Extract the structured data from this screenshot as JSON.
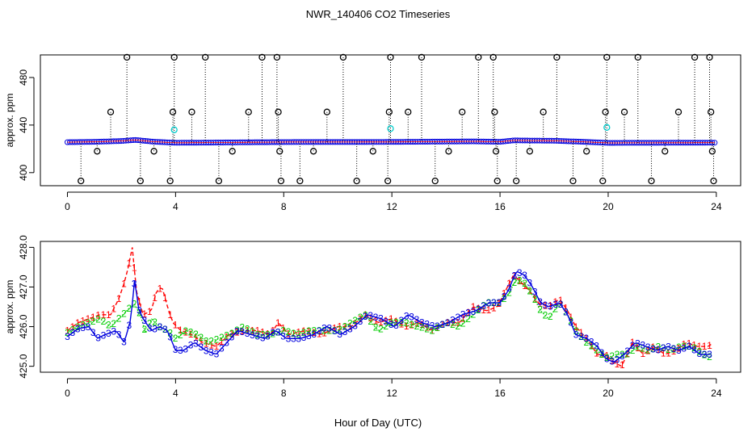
{
  "figure": {
    "title": "NWR_140406  CO2 Timeseries",
    "xlabel": "Hour of Day (UTC)"
  },
  "chart_data": [
    {
      "type": "scatter",
      "ylabel": "approx. ppm",
      "xlim": [
        -1,
        24.9
      ],
      "ylim": [
        389,
        499
      ],
      "x_ticks": [
        0,
        4,
        8,
        12,
        16,
        20,
        24
      ],
      "y_ticks": [
        400,
        440,
        480
      ],
      "baseline": [
        [
          0,
          425.6
        ],
        [
          1,
          425.9
        ],
        [
          2,
          426.6
        ],
        [
          2.5,
          427.5
        ],
        [
          3.2,
          426.0
        ],
        [
          4,
          425.1
        ],
        [
          5,
          425.2
        ],
        [
          6,
          425.4
        ],
        [
          8,
          425.7
        ],
        [
          12,
          425.8
        ],
        [
          15,
          426.3
        ],
        [
          16,
          425.9
        ],
        [
          16.5,
          427.1
        ],
        [
          18,
          426.8
        ],
        [
          19,
          426.0
        ],
        [
          20,
          425.0
        ],
        [
          24,
          425.2
        ]
      ],
      "outliers": [
        {
          "x": 0.5,
          "y": 393
        },
        {
          "x": 1.1,
          "y": 418
        },
        {
          "x": 1.6,
          "y": 451
        },
        {
          "x": 2.2,
          "y": 497
        },
        {
          "x": 2.7,
          "y": 393
        },
        {
          "x": 3.2,
          "y": 418
        },
        {
          "x": 3.8,
          "y": 393
        },
        {
          "x": 3.9,
          "y": 451
        },
        {
          "x": 3.95,
          "y": 497
        },
        {
          "x": 4.6,
          "y": 451
        },
        {
          "x": 5.1,
          "y": 497
        },
        {
          "x": 5.6,
          "y": 393
        },
        {
          "x": 6.1,
          "y": 418
        },
        {
          "x": 6.7,
          "y": 451
        },
        {
          "x": 7.2,
          "y": 497
        },
        {
          "x": 7.75,
          "y": 497
        },
        {
          "x": 7.8,
          "y": 451
        },
        {
          "x": 7.85,
          "y": 418
        },
        {
          "x": 7.9,
          "y": 393
        },
        {
          "x": 8.6,
          "y": 393
        },
        {
          "x": 9.1,
          "y": 418
        },
        {
          "x": 9.6,
          "y": 451
        },
        {
          "x": 10.2,
          "y": 497
        },
        {
          "x": 10.7,
          "y": 393
        },
        {
          "x": 11.3,
          "y": 418
        },
        {
          "x": 11.85,
          "y": 393
        },
        {
          "x": 11.9,
          "y": 451
        },
        {
          "x": 11.95,
          "y": 497
        },
        {
          "x": 12.6,
          "y": 451
        },
        {
          "x": 13.1,
          "y": 497
        },
        {
          "x": 13.6,
          "y": 393
        },
        {
          "x": 14.1,
          "y": 418
        },
        {
          "x": 14.6,
          "y": 451
        },
        {
          "x": 15.2,
          "y": 497
        },
        {
          "x": 15.75,
          "y": 497
        },
        {
          "x": 15.8,
          "y": 451
        },
        {
          "x": 15.85,
          "y": 418
        },
        {
          "x": 15.9,
          "y": 393
        },
        {
          "x": 16.6,
          "y": 393
        },
        {
          "x": 17.1,
          "y": 418
        },
        {
          "x": 17.6,
          "y": 451
        },
        {
          "x": 18.1,
          "y": 497
        },
        {
          "x": 18.7,
          "y": 393
        },
        {
          "x": 19.2,
          "y": 418
        },
        {
          "x": 19.8,
          "y": 393
        },
        {
          "x": 19.9,
          "y": 451
        },
        {
          "x": 19.95,
          "y": 497
        },
        {
          "x": 20.6,
          "y": 451
        },
        {
          "x": 21.1,
          "y": 497
        },
        {
          "x": 21.6,
          "y": 393
        },
        {
          "x": 22.1,
          "y": 418
        },
        {
          "x": 22.6,
          "y": 451
        },
        {
          "x": 23.2,
          "y": 497
        },
        {
          "x": 23.75,
          "y": 497
        },
        {
          "x": 23.8,
          "y": 451
        },
        {
          "x": 23.85,
          "y": 418
        },
        {
          "x": 23.9,
          "y": 393
        }
      ],
      "cyan_points": [
        {
          "x": 3.95,
          "y": 436
        },
        {
          "x": 11.95,
          "y": 437
        },
        {
          "x": 19.95,
          "y": 438
        }
      ]
    },
    {
      "type": "line",
      "ylabel": "approx. ppm",
      "xlim": [
        -1,
        24.9
      ],
      "ylim": [
        424.85,
        428.15
      ],
      "x_ticks": [
        0,
        4,
        8,
        12,
        16,
        20,
        24
      ],
      "y_ticks": [
        425.0,
        426.0,
        427.0,
        428.0
      ],
      "series": [
        {
          "name": "1",
          "color": "#ff0000",
          "style": "dashed",
          "points": [
            [
              0,
              425.9
            ],
            [
              0.4,
              426.1
            ],
            [
              0.8,
              426.2
            ],
            [
              1.2,
              426.3
            ],
            [
              1.6,
              426.3
            ],
            [
              1.9,
              426.7
            ],
            [
              2.1,
              427.1
            ],
            [
              2.25,
              427.5
            ],
            [
              2.4,
              428.0
            ],
            [
              2.55,
              426.9
            ],
            [
              2.8,
              426.3
            ],
            [
              3.1,
              426.4
            ],
            [
              3.3,
              426.9
            ],
            [
              3.5,
              427.0
            ],
            [
              3.7,
              426.5
            ],
            [
              3.9,
              426.1
            ],
            [
              4.2,
              425.9
            ],
            [
              4.6,
              425.8
            ],
            [
              5.0,
              425.6
            ],
            [
              5.5,
              425.5
            ],
            [
              6.0,
              425.8
            ],
            [
              6.5,
              425.9
            ],
            [
              7.0,
              425.9
            ],
            [
              7.5,
              425.8
            ],
            [
              7.8,
              426.1
            ],
            [
              8.2,
              425.8
            ],
            [
              8.8,
              425.9
            ],
            [
              9.4,
              425.8
            ],
            [
              10.0,
              426.0
            ],
            [
              10.5,
              426.0
            ],
            [
              11.0,
              426.3
            ],
            [
              11.5,
              426.1
            ],
            [
              12.0,
              426.2
            ],
            [
              12.5,
              426.0
            ],
            [
              13.0,
              426.1
            ],
            [
              13.5,
              425.9
            ],
            [
              14.0,
              426.1
            ],
            [
              14.5,
              426.1
            ],
            [
              15.0,
              426.5
            ],
            [
              15.5,
              426.4
            ],
            [
              15.9,
              426.5
            ],
            [
              16.2,
              426.9
            ],
            [
              16.5,
              427.3
            ],
            [
              16.8,
              427.1
            ],
            [
              17.1,
              426.9
            ],
            [
              17.4,
              426.6
            ],
            [
              17.8,
              426.5
            ],
            [
              18.2,
              426.7
            ],
            [
              18.5,
              426.4
            ],
            [
              18.8,
              426.0
            ],
            [
              19.2,
              425.7
            ],
            [
              19.6,
              425.3
            ],
            [
              19.9,
              425.3
            ],
            [
              20.2,
              425.1
            ],
            [
              20.5,
              425.0
            ],
            [
              20.9,
              425.6
            ],
            [
              21.3,
              425.3
            ],
            [
              21.7,
              425.5
            ],
            [
              22.1,
              425.3
            ],
            [
              22.5,
              425.4
            ],
            [
              22.9,
              425.6
            ],
            [
              23.3,
              425.5
            ],
            [
              23.7,
              425.5
            ],
            [
              23.9,
              425.6
            ]
          ]
        },
        {
          "name": "2",
          "color": "#00cc00",
          "style": "dotted",
          "points": [
            [
              0,
              425.85
            ],
            [
              0.4,
              426.0
            ],
            [
              0.8,
              426.1
            ],
            [
              1.2,
              426.2
            ],
            [
              1.6,
              426.0
            ],
            [
              1.9,
              426.2
            ],
            [
              2.2,
              426.4
            ],
            [
              2.45,
              426.6
            ],
            [
              2.7,
              426.3
            ],
            [
              2.9,
              425.8
            ],
            [
              3.1,
              426.2
            ],
            [
              3.4,
              426.0
            ],
            [
              3.7,
              425.9
            ],
            [
              4.0,
              425.7
            ],
            [
              4.4,
              425.9
            ],
            [
              4.8,
              425.8
            ],
            [
              5.2,
              425.6
            ],
            [
              5.6,
              425.7
            ],
            [
              6.0,
              425.8
            ],
            [
              6.5,
              426.0
            ],
            [
              7.0,
              425.8
            ],
            [
              7.5,
              425.8
            ],
            [
              8.0,
              425.9
            ],
            [
              8.5,
              425.8
            ],
            [
              9.0,
              425.9
            ],
            [
              9.5,
              425.9
            ],
            [
              10.0,
              425.9
            ],
            [
              10.5,
              426.1
            ],
            [
              11.0,
              426.3
            ],
            [
              11.5,
              425.9
            ],
            [
              12.0,
              426.1
            ],
            [
              12.5,
              426.1
            ],
            [
              13.0,
              426.0
            ],
            [
              13.5,
              425.9
            ],
            [
              14.0,
              426.1
            ],
            [
              14.5,
              426.0
            ],
            [
              15.0,
              426.3
            ],
            [
              15.5,
              426.6
            ],
            [
              16.0,
              426.6
            ],
            [
              16.3,
              426.8
            ],
            [
              16.6,
              427.2
            ],
            [
              16.9,
              427.1
            ],
            [
              17.2,
              426.8
            ],
            [
              17.5,
              426.4
            ],
            [
              17.8,
              426.2
            ],
            [
              18.2,
              426.6
            ],
            [
              18.5,
              426.3
            ],
            [
              18.8,
              425.9
            ],
            [
              19.2,
              425.6
            ],
            [
              19.6,
              425.4
            ],
            [
              19.9,
              425.2
            ],
            [
              20.3,
              425.3
            ],
            [
              20.7,
              425.3
            ],
            [
              21.1,
              425.5
            ],
            [
              21.5,
              425.4
            ],
            [
              21.9,
              425.5
            ],
            [
              22.3,
              425.4
            ],
            [
              22.7,
              425.5
            ],
            [
              23.1,
              425.5
            ],
            [
              23.5,
              425.3
            ],
            [
              23.9,
              425.2
            ]
          ]
        },
        {
          "name": "3",
          "color": "#0000dd",
          "style": "solid",
          "points": [
            [
              0,
              425.75
            ],
            [
              0.4,
              425.95
            ],
            [
              0.8,
              426.0
            ],
            [
              1.1,
              425.7
            ],
            [
              1.4,
              425.8
            ],
            [
              1.8,
              425.9
            ],
            [
              2.1,
              425.6
            ],
            [
              2.35,
              426.2
            ],
            [
              2.5,
              427.3
            ],
            [
              2.6,
              426.5
            ],
            [
              2.8,
              426.2
            ],
            [
              3.1,
              425.9
            ],
            [
              3.4,
              426.0
            ],
            [
              3.7,
              425.9
            ],
            [
              4.0,
              425.4
            ],
            [
              4.3,
              425.4
            ],
            [
              4.7,
              425.6
            ],
            [
              5.1,
              425.4
            ],
            [
              5.5,
              425.3
            ],
            [
              5.9,
              425.6
            ],
            [
              6.3,
              425.9
            ],
            [
              6.8,
              425.8
            ],
            [
              7.3,
              425.7
            ],
            [
              7.7,
              425.9
            ],
            [
              8.1,
              425.7
            ],
            [
              8.6,
              425.7
            ],
            [
              9.1,
              425.8
            ],
            [
              9.6,
              426.0
            ],
            [
              10.1,
              425.8
            ],
            [
              10.6,
              426.0
            ],
            [
              11.1,
              426.3
            ],
            [
              11.6,
              426.2
            ],
            [
              12.1,
              426.0
            ],
            [
              12.6,
              426.3
            ],
            [
              13.1,
              426.1
            ],
            [
              13.6,
              426.0
            ],
            [
              14.1,
              426.1
            ],
            [
              14.6,
              426.3
            ],
            [
              15.1,
              426.4
            ],
            [
              15.6,
              426.6
            ],
            [
              16.0,
              426.6
            ],
            [
              16.3,
              426.9
            ],
            [
              16.6,
              427.4
            ],
            [
              16.9,
              427.3
            ],
            [
              17.2,
              427.0
            ],
            [
              17.5,
              426.6
            ],
            [
              17.8,
              426.5
            ],
            [
              18.2,
              426.6
            ],
            [
              18.5,
              426.3
            ],
            [
              18.8,
              425.8
            ],
            [
              19.2,
              425.7
            ],
            [
              19.6,
              425.5
            ],
            [
              19.9,
              425.2
            ],
            [
              20.2,
              425.1
            ],
            [
              20.6,
              425.3
            ],
            [
              21.0,
              425.6
            ],
            [
              21.4,
              425.5
            ],
            [
              21.8,
              425.4
            ],
            [
              22.2,
              425.5
            ],
            [
              22.6,
              425.4
            ],
            [
              23.0,
              425.5
            ],
            [
              23.4,
              425.3
            ],
            [
              23.8,
              425.3
            ]
          ]
        }
      ]
    }
  ]
}
